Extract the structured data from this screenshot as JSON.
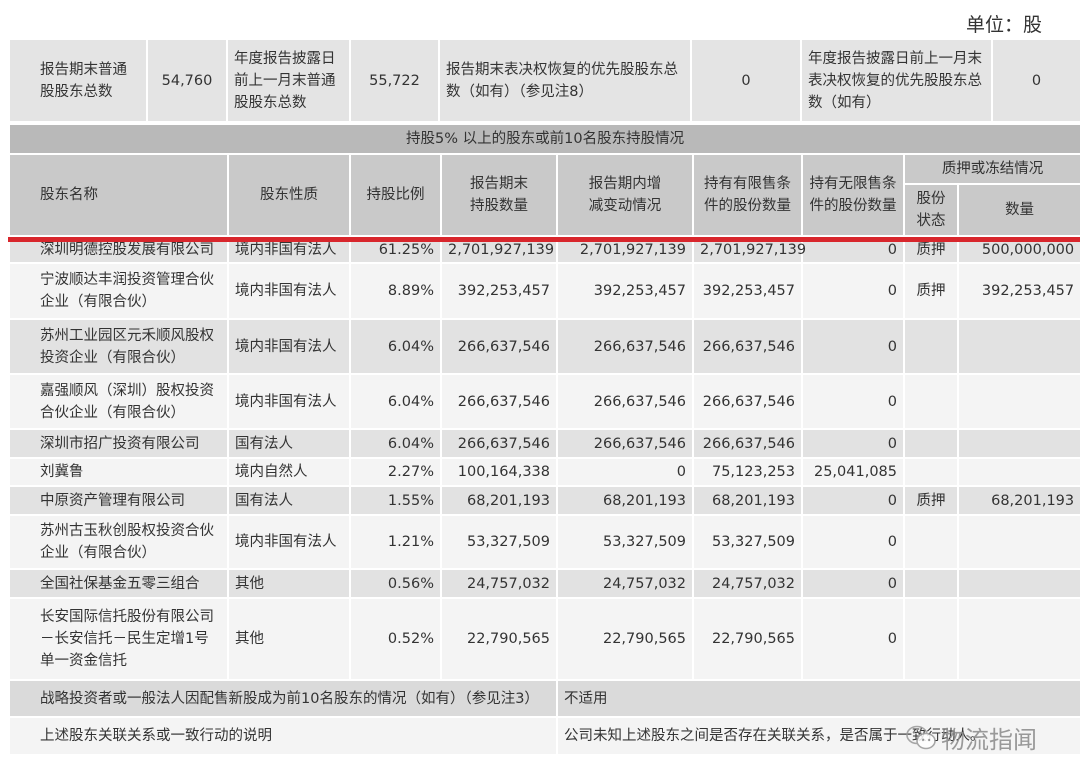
{
  "unit_label": "单位：股",
  "summary": {
    "label1": "报告期末普通股股东总数",
    "value1": "54,760",
    "label2": "年度报告披露日前上一月末普通股股东总数",
    "value2": "55,722",
    "label3": "报告期末表决权恢复的优先股股东总数（如有）（参见注8）",
    "value3": "0",
    "label4": "年度报告披露日前上一月末表决权恢复的优先股股东总数（如有）",
    "value4": "0"
  },
  "section_title": "持股5% 以上的股东或前10名股东持股情况",
  "headers": {
    "name": "股东名称",
    "nature": "股东性质",
    "ratio": "持股比例",
    "end_holdings": "报告期末持股数量",
    "change": "报告期内增减变动情况",
    "restricted": "持有有限售条件的股份数量",
    "unrestricted": "持有无限售条件的股份数量",
    "pledge_group": "质押或冻结情况",
    "pledge_status": "股份状态",
    "pledge_qty": "数量"
  },
  "rows": [
    {
      "name": "深圳明德控股发展有限公司",
      "nature": "境内非国有法人",
      "ratio": "61.25%",
      "end": "2,701,927,139",
      "change": "2,701,927,139",
      "restricted": "2,701,927,139",
      "unrestricted": "0",
      "status": "质押",
      "qty": "500,000,000"
    },
    {
      "name": "宁波顺达丰润投资管理合伙企业（有限合伙）",
      "nature": "境内非国有法人",
      "ratio": "8.89%",
      "end": "392,253,457",
      "change": "392,253,457",
      "restricted": "392,253,457",
      "unrestricted": "0",
      "status": "质押",
      "qty": "392,253,457"
    },
    {
      "name": "苏州工业园区元禾顺风股权投资企业（有限合伙）",
      "nature": "境内非国有法人",
      "ratio": "6.04%",
      "end": "266,637,546",
      "change": "266,637,546",
      "restricted": "266,637,546",
      "unrestricted": "0",
      "status": "",
      "qty": ""
    },
    {
      "name": "嘉强顺风（深圳）股权投资合伙企业（有限合伙）",
      "nature": "境内非国有法人",
      "ratio": "6.04%",
      "end": "266,637,546",
      "change": "266,637,546",
      "restricted": "266,637,546",
      "unrestricted": "0",
      "status": "",
      "qty": ""
    },
    {
      "name": "深圳市招广投资有限公司",
      "nature": "国有法人",
      "ratio": "6.04%",
      "end": "266,637,546",
      "change": "266,637,546",
      "restricted": "266,637,546",
      "unrestricted": "0",
      "status": "",
      "qty": ""
    },
    {
      "name": "刘冀鲁",
      "nature": "境内自然人",
      "ratio": "2.27%",
      "end": "100,164,338",
      "change": "0",
      "restricted": "75,123,253",
      "unrestricted": "25,041,085",
      "status": "",
      "qty": ""
    },
    {
      "name": "中原资产管理有限公司",
      "nature": "国有法人",
      "ratio": "1.55%",
      "end": "68,201,193",
      "change": "68,201,193",
      "restricted": "68,201,193",
      "unrestricted": "0",
      "status": "质押",
      "qty": "68,201,193"
    },
    {
      "name": "苏州古玉秋创股权投资合伙企业（有限合伙）",
      "nature": "境内非国有法人",
      "ratio": "1.21%",
      "end": "53,327,509",
      "change": "53,327,509",
      "restricted": "53,327,509",
      "unrestricted": "0",
      "status": "",
      "qty": ""
    },
    {
      "name": "全国社保基金五零三组合",
      "nature": "其他",
      "ratio": "0.56%",
      "end": "24,757,032",
      "change": "24,757,032",
      "restricted": "24,757,032",
      "unrestricted": "0",
      "status": "",
      "qty": ""
    },
    {
      "name": "长安国际信托股份有限公司－长安信托－民生定增1号单一资金信托",
      "nature": "其他",
      "ratio": "0.52%",
      "end": "22,790,565",
      "change": "22,790,565",
      "restricted": "22,790,565",
      "unrestricted": "0",
      "status": "",
      "qty": ""
    }
  ],
  "footer": {
    "strategic_label": "战略投资者或一般法人因配售新股成为前10名股东的情况（如有）（参见注3）",
    "strategic_value": "不适用",
    "relation_label": "上述股东关联关系或一致行动的说明",
    "relation_value": "公司未知上述股东之间是否存在关联关系，是否属于一致行动人。"
  },
  "watermark": {
    "text": "物流指闻",
    "icon": "wechat-icon"
  }
}
